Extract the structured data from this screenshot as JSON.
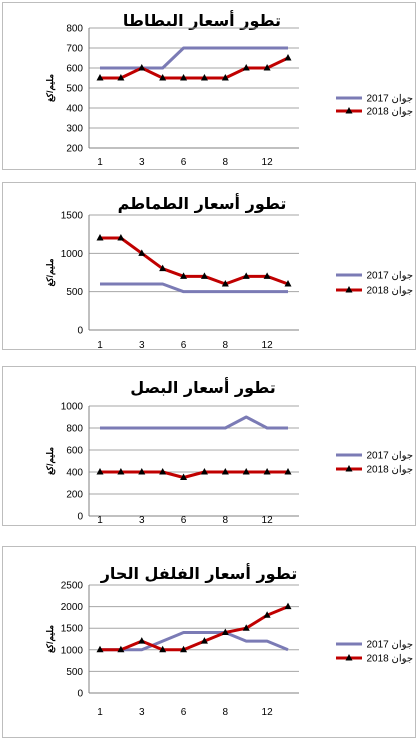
{
  "colors": {
    "series2017": "#7b7bb5",
    "series2018": "#c00000",
    "grid": "#a6a6a6"
  },
  "chart_data": [
    {
      "type": "line",
      "title": "تطور أسعار البطاطا",
      "ylabel": "مليم/كغ",
      "x_tick_labels": [
        "1",
        "3",
        "6",
        "8",
        "12"
      ],
      "ylim": [
        200,
        800
      ],
      "yticks": [
        200,
        300,
        400,
        500,
        600,
        700,
        800
      ],
      "grid": true,
      "legend": "right",
      "series": [
        {
          "name": "جوان 2017",
          "values": [
            600,
            600,
            600,
            600,
            700,
            700,
            700,
            700,
            700,
            700
          ]
        },
        {
          "name": "جوان 2018",
          "values": [
            550,
            550,
            600,
            550,
            550,
            550,
            550,
            600,
            600,
            650
          ]
        }
      ]
    },
    {
      "type": "line",
      "title": "تطور أسعار الطماطم",
      "ylabel": "مليم/كغ",
      "x_tick_labels": [
        "1",
        "3",
        "6",
        "8",
        "12"
      ],
      "ylim": [
        0,
        1500
      ],
      "yticks": [
        0,
        500,
        1000,
        1500
      ],
      "grid": true,
      "legend": "right",
      "series": [
        {
          "name": "جوان 2017",
          "values": [
            600,
            600,
            600,
            600,
            500,
            500,
            500,
            500,
            500,
            500
          ]
        },
        {
          "name": "جوان 2018",
          "values": [
            1200,
            1200,
            1000,
            800,
            700,
            700,
            600,
            700,
            700,
            600
          ]
        }
      ]
    },
    {
      "type": "line",
      "title": "تطور أسعار البصل",
      "ylabel": "مليم/كغ",
      "x_tick_labels": [
        "1",
        "3",
        "6",
        "8",
        "12"
      ],
      "ylim": [
        0,
        1000
      ],
      "yticks": [
        0,
        200,
        400,
        600,
        800,
        1000
      ],
      "grid": true,
      "legend": "right",
      "series": [
        {
          "name": "جوان 2017",
          "values": [
            800,
            800,
            800,
            800,
            800,
            800,
            800,
            900,
            800,
            800
          ]
        },
        {
          "name": "جوان 2018",
          "values": [
            400,
            400,
            400,
            400,
            350,
            400,
            400,
            400,
            400,
            400
          ]
        }
      ]
    },
    {
      "type": "line",
      "title": "تطور أسعار الفلفل الحار",
      "ylabel": "مليم/كغ",
      "x_tick_labels": [
        "1",
        "3",
        "6",
        "8",
        "12"
      ],
      "ylim": [
        0,
        2500
      ],
      "yticks": [
        0,
        500,
        1000,
        1500,
        2000,
        2500
      ],
      "grid": true,
      "legend": "right",
      "series": [
        {
          "name": "جوان 2017",
          "values": [
            1000,
            1000,
            1000,
            1200,
            1400,
            1400,
            1400,
            1200,
            1200,
            1000
          ]
        },
        {
          "name": "جوان 2018",
          "values": [
            1000,
            1000,
            1200,
            1000,
            1000,
            1200,
            1400,
            1500,
            1800,
            2000
          ]
        }
      ]
    }
  ]
}
